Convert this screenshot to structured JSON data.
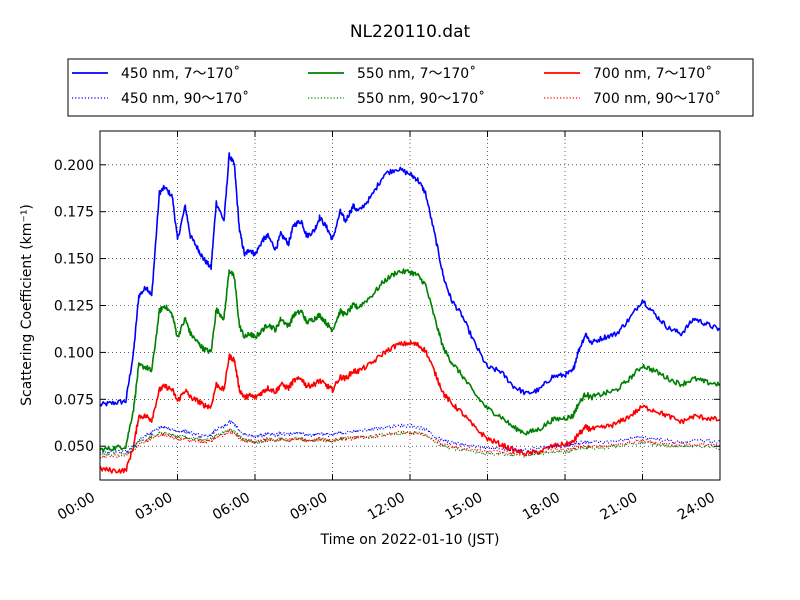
{
  "chart_data": {
    "type": "line",
    "title": "NL220110.dat",
    "xlabel": "Time on 2022-01-10 (JST)",
    "ylabel": "Scattering Coefficient (km⁻¹)",
    "xlim": [
      0,
      24
    ],
    "ylim": [
      0.032,
      0.218
    ],
    "x_ticks": [
      0,
      3,
      6,
      9,
      12,
      15,
      18,
      21,
      24
    ],
    "x_tick_labels": [
      "00:00",
      "03:00",
      "06:00",
      "09:00",
      "12:00",
      "15:00",
      "18:00",
      "21:00",
      "24:00"
    ],
    "y_ticks": [
      0.05,
      0.075,
      0.1,
      0.125,
      0.15,
      0.175,
      0.2
    ],
    "y_tick_labels": [
      "0.050",
      "0.075",
      "0.100",
      "0.125",
      "0.150",
      "0.175",
      "0.200"
    ],
    "grid": true,
    "legend_position": "top",
    "x": [
      0,
      0.5,
      1,
      1.3,
      1.5,
      1.8,
      2,
      2.3,
      2.5,
      2.8,
      3,
      3.3,
      3.5,
      3.8,
      4,
      4.3,
      4.5,
      4.8,
      5,
      5.2,
      5.4,
      5.6,
      5.8,
      6,
      6.3,
      6.5,
      6.8,
      7,
      7.3,
      7.5,
      7.8,
      8,
      8.3,
      8.5,
      8.8,
      9,
      9.3,
      9.5,
      9.8,
      10,
      10.5,
      11,
      11.5,
      12,
      12.3,
      12.6,
      13,
      13.3,
      13.6,
      14,
      14.5,
      15,
      15.5,
      16,
      16.5,
      17,
      17.5,
      18,
      18.3,
      18.5,
      18.8,
      19,
      19.5,
      20,
      20.5,
      21,
      21.5,
      22,
      22.5,
      23,
      23.5,
      24
    ],
    "series": [
      {
        "name": "450 nm, 7～170˚",
        "color": "#0000ff",
        "style": "solid",
        "values": [
          0.072,
          0.073,
          0.074,
          0.1,
          0.13,
          0.135,
          0.13,
          0.185,
          0.188,
          0.183,
          0.16,
          0.178,
          0.162,
          0.155,
          0.15,
          0.145,
          0.18,
          0.17,
          0.205,
          0.2,
          0.165,
          0.152,
          0.155,
          0.152,
          0.16,
          0.162,
          0.155,
          0.163,
          0.158,
          0.168,
          0.17,
          0.162,
          0.165,
          0.172,
          0.166,
          0.16,
          0.175,
          0.17,
          0.178,
          0.175,
          0.183,
          0.195,
          0.198,
          0.195,
          0.192,
          0.185,
          0.16,
          0.14,
          0.128,
          0.12,
          0.105,
          0.092,
          0.09,
          0.082,
          0.078,
          0.08,
          0.087,
          0.088,
          0.09,
          0.1,
          0.11,
          0.105,
          0.108,
          0.11,
          0.118,
          0.128,
          0.12,
          0.113,
          0.11,
          0.118,
          0.115,
          0.112
        ]
      },
      {
        "name": "450 nm, 90～170˚",
        "color": "#0000ff",
        "style": "dotted",
        "values": [
          0.046,
          0.047,
          0.047,
          0.05,
          0.053,
          0.056,
          0.057,
          0.06,
          0.06,
          0.059,
          0.058,
          0.058,
          0.057,
          0.056,
          0.055,
          0.056,
          0.059,
          0.06,
          0.063,
          0.062,
          0.058,
          0.056,
          0.056,
          0.055,
          0.056,
          0.057,
          0.056,
          0.057,
          0.056,
          0.057,
          0.057,
          0.056,
          0.056,
          0.057,
          0.056,
          0.056,
          0.057,
          0.057,
          0.058,
          0.058,
          0.059,
          0.06,
          0.061,
          0.061,
          0.06,
          0.059,
          0.055,
          0.053,
          0.052,
          0.051,
          0.05,
          0.049,
          0.049,
          0.048,
          0.048,
          0.049,
          0.05,
          0.05,
          0.051,
          0.052,
          0.052,
          0.052,
          0.052,
          0.053,
          0.054,
          0.055,
          0.054,
          0.053,
          0.052,
          0.053,
          0.053,
          0.052
        ]
      },
      {
        "name": "550 nm, 7～170˚",
        "color": "#008000",
        "style": "solid",
        "values": [
          0.048,
          0.049,
          0.05,
          0.07,
          0.093,
          0.092,
          0.09,
          0.122,
          0.125,
          0.12,
          0.108,
          0.118,
          0.11,
          0.105,
          0.102,
          0.1,
          0.123,
          0.118,
          0.144,
          0.14,
          0.114,
          0.108,
          0.11,
          0.108,
          0.112,
          0.115,
          0.112,
          0.118,
          0.114,
          0.12,
          0.122,
          0.116,
          0.118,
          0.12,
          0.115,
          0.112,
          0.122,
          0.12,
          0.125,
          0.124,
          0.13,
          0.138,
          0.143,
          0.143,
          0.141,
          0.136,
          0.116,
          0.102,
          0.095,
          0.088,
          0.078,
          0.07,
          0.066,
          0.06,
          0.057,
          0.059,
          0.064,
          0.065,
          0.066,
          0.072,
          0.078,
          0.076,
          0.078,
          0.08,
          0.086,
          0.093,
          0.09,
          0.086,
          0.083,
          0.086,
          0.084,
          0.083
        ]
      },
      {
        "name": "550 nm, 90～170˚",
        "color": "#008000",
        "style": "dotted",
        "values": [
          0.045,
          0.046,
          0.046,
          0.049,
          0.052,
          0.054,
          0.055,
          0.057,
          0.057,
          0.056,
          0.055,
          0.055,
          0.054,
          0.054,
          0.053,
          0.054,
          0.056,
          0.057,
          0.059,
          0.058,
          0.055,
          0.053,
          0.053,
          0.052,
          0.053,
          0.054,
          0.053,
          0.054,
          0.053,
          0.054,
          0.054,
          0.053,
          0.053,
          0.054,
          0.053,
          0.053,
          0.054,
          0.054,
          0.055,
          0.055,
          0.055,
          0.056,
          0.057,
          0.057,
          0.057,
          0.056,
          0.052,
          0.05,
          0.049,
          0.048,
          0.047,
          0.046,
          0.046,
          0.045,
          0.045,
          0.046,
          0.047,
          0.047,
          0.048,
          0.049,
          0.049,
          0.049,
          0.049,
          0.05,
          0.051,
          0.052,
          0.051,
          0.05,
          0.05,
          0.05,
          0.05,
          0.049
        ]
      },
      {
        "name": "700 nm, 7～170˚",
        "color": "#ff0000",
        "style": "solid",
        "values": [
          0.038,
          0.037,
          0.037,
          0.05,
          0.066,
          0.066,
          0.064,
          0.08,
          0.082,
          0.08,
          0.074,
          0.08,
          0.076,
          0.074,
          0.072,
          0.071,
          0.083,
          0.08,
          0.098,
          0.096,
          0.08,
          0.076,
          0.077,
          0.076,
          0.079,
          0.081,
          0.079,
          0.083,
          0.081,
          0.085,
          0.086,
          0.082,
          0.083,
          0.085,
          0.082,
          0.08,
          0.087,
          0.086,
          0.09,
          0.09,
          0.094,
          0.1,
          0.104,
          0.105,
          0.104,
          0.101,
          0.088,
          0.078,
          0.073,
          0.068,
          0.06,
          0.054,
          0.051,
          0.048,
          0.046,
          0.047,
          0.05,
          0.051,
          0.052,
          0.056,
          0.06,
          0.059,
          0.06,
          0.062,
          0.066,
          0.071,
          0.069,
          0.066,
          0.063,
          0.066,
          0.065,
          0.064
        ]
      },
      {
        "name": "700 nm, 90～170˚",
        "color": "#ff0000",
        "style": "dotted",
        "values": [
          0.044,
          0.045,
          0.045,
          0.048,
          0.051,
          0.053,
          0.054,
          0.056,
          0.056,
          0.055,
          0.054,
          0.054,
          0.053,
          0.053,
          0.052,
          0.053,
          0.055,
          0.056,
          0.058,
          0.057,
          0.054,
          0.053,
          0.053,
          0.052,
          0.053,
          0.053,
          0.053,
          0.054,
          0.053,
          0.054,
          0.054,
          0.053,
          0.053,
          0.054,
          0.053,
          0.053,
          0.054,
          0.054,
          0.054,
          0.055,
          0.055,
          0.056,
          0.057,
          0.057,
          0.057,
          0.056,
          0.053,
          0.051,
          0.05,
          0.049,
          0.048,
          0.047,
          0.047,
          0.046,
          0.046,
          0.047,
          0.048,
          0.048,
          0.049,
          0.05,
          0.05,
          0.05,
          0.05,
          0.051,
          0.052,
          0.053,
          0.052,
          0.051,
          0.051,
          0.051,
          0.051,
          0.05
        ]
      }
    ]
  }
}
